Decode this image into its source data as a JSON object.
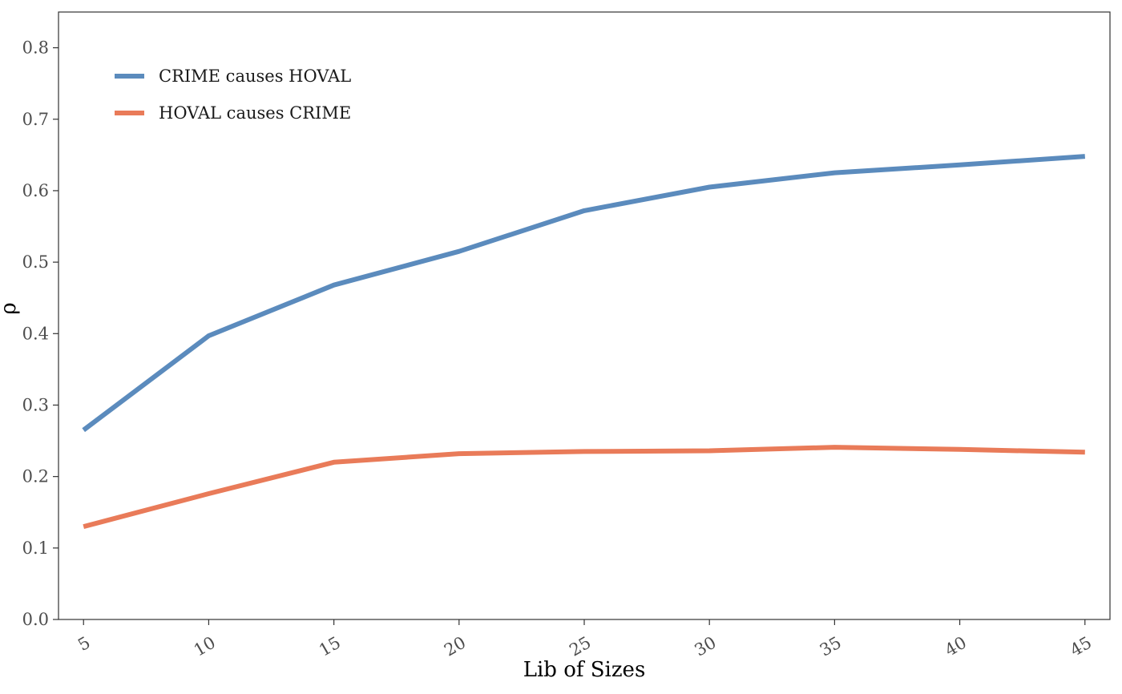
{
  "chart_data": {
    "type": "line",
    "xlabel": "Lib of Sizes",
    "ylabel": "ρ",
    "x": [
      5,
      10,
      15,
      20,
      25,
      30,
      35,
      40,
      45
    ],
    "x_tick_labels": [
      "5",
      "10",
      "15",
      "20",
      "25",
      "30",
      "35",
      "40",
      "45"
    ],
    "y_ticks": [
      0.0,
      0.1,
      0.2,
      0.3,
      0.4,
      0.5,
      0.6,
      0.7,
      0.8
    ],
    "y_tick_labels": [
      "0.0",
      "0.1",
      "0.2",
      "0.3",
      "0.4",
      "0.5",
      "0.6",
      "0.7",
      "0.8"
    ],
    "xlim": [
      4,
      46
    ],
    "ylim": [
      0.0,
      0.85
    ],
    "grid": false,
    "legend_position": "top-left",
    "series": [
      {
        "name": "CRIME causes HOVAL",
        "color": "#5b8bbd",
        "values": [
          0.265,
          0.397,
          0.468,
          0.515,
          0.572,
          0.605,
          0.625,
          0.636,
          0.648
        ]
      },
      {
        "name": "HOVAL causes CRIME",
        "color": "#e97b59",
        "values": [
          0.13,
          0.176,
          0.22,
          0.232,
          0.235,
          0.236,
          0.241,
          0.238,
          0.234
        ]
      }
    ]
  }
}
